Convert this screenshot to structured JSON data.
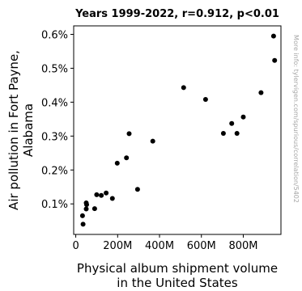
{
  "chart_data": {
    "type": "scatter",
    "title": "Years 1999-2022, r=0.912, p<0.01",
    "xlabel_lines": [
      "Physical album shipment volume",
      "in the United States"
    ],
    "ylabel_lines": [
      "Air pollution in Fort Payne,",
      "Alabama"
    ],
    "watermark": "More info: tylervigen.com/spurious/correlation/5402",
    "xlim": [
      -10,
      980
    ],
    "ylim": [
      0.0001,
      0.00625
    ],
    "x_ticks": [
      {
        "value": 0,
        "label": "0"
      },
      {
        "value": 200,
        "label": "200M"
      },
      {
        "value": 400,
        "label": "400M"
      },
      {
        "value": 600,
        "label": "600M"
      },
      {
        "value": 800,
        "label": "800M"
      }
    ],
    "y_ticks": [
      {
        "value": 0.001,
        "label": "0.1%"
      },
      {
        "value": 0.002,
        "label": "0.2%"
      },
      {
        "value": 0.003,
        "label": "0.3%"
      },
      {
        "value": 0.004,
        "label": "0.4%"
      },
      {
        "value": 0.005,
        "label": "0.5%"
      },
      {
        "value": 0.006,
        "label": "0.6%"
      }
    ],
    "x_unit": "millions",
    "grid": false,
    "points": [
      {
        "x": 945,
        "y": 0.00595
      },
      {
        "x": 950,
        "y": 0.00523
      },
      {
        "x": 515,
        "y": 0.00443
      },
      {
        "x": 885,
        "y": 0.00428
      },
      {
        "x": 620,
        "y": 0.00408
      },
      {
        "x": 800,
        "y": 0.00356
      },
      {
        "x": 745,
        "y": 0.00337
      },
      {
        "x": 705,
        "y": 0.00308
      },
      {
        "x": 770,
        "y": 0.00308
      },
      {
        "x": 255,
        "y": 0.00307
      },
      {
        "x": 368,
        "y": 0.00285
      },
      {
        "x": 242,
        "y": 0.00236
      },
      {
        "x": 198,
        "y": 0.0022
      },
      {
        "x": 295,
        "y": 0.00143
      },
      {
        "x": 145,
        "y": 0.00132
      },
      {
        "x": 100,
        "y": 0.00127
      },
      {
        "x": 122,
        "y": 0.00125
      },
      {
        "x": 175,
        "y": 0.00116
      },
      {
        "x": 50,
        "y": 0.00103
      },
      {
        "x": 52,
        "y": 0.00098
      },
      {
        "x": 50,
        "y": 0.00085
      },
      {
        "x": 90,
        "y": 0.00086
      },
      {
        "x": 32,
        "y": 0.00065
      },
      {
        "x": 35,
        "y": 0.0004
      }
    ]
  }
}
